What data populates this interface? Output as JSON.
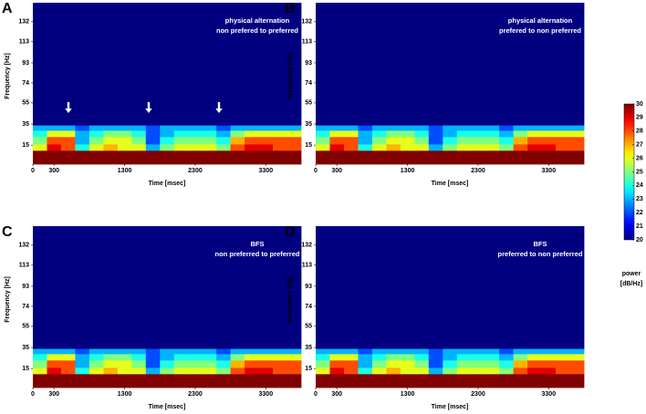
{
  "chart_data": [
    {
      "type": "heatmap",
      "panel": "A",
      "annotation": [
        "physical alternation",
        "non prefered to preferred"
      ],
      "xlabel": "Time [msec]",
      "ylabel": "Frequency [Hz]",
      "xlim": [
        0,
        3800
      ],
      "ylim": [
        -3,
        150
      ],
      "xticks": [
        0,
        300,
        1300,
        2300,
        3300
      ],
      "yticks": [
        15,
        35,
        55,
        74,
        93,
        113,
        132
      ],
      "x_bins": [
        0,
        200,
        400,
        600,
        800,
        1000,
        1200,
        1400,
        1600,
        1800,
        2000,
        2200,
        2400,
        2600,
        2800,
        3000,
        3200,
        3400,
        3600,
        3800
      ],
      "y_bins": [
        -3,
        10,
        16,
        23,
        29,
        34,
        150
      ],
      "z": [
        [
          30,
          30,
          30,
          30,
          30,
          30,
          30,
          30,
          30,
          30,
          30,
          30,
          30,
          30,
          30,
          30,
          30,
          30,
          30
        ],
        [
          26,
          29,
          28,
          24,
          26,
          27,
          26,
          26,
          23,
          25,
          26,
          26,
          26,
          25,
          28,
          29,
          29,
          28,
          28
        ],
        [
          25,
          28,
          28,
          23,
          25,
          26,
          26,
          25,
          22,
          24,
          25,
          25,
          25,
          24,
          27,
          28,
          28,
          28,
          28
        ],
        [
          24,
          26,
          26,
          23,
          24,
          25,
          25,
          24,
          22,
          23,
          24,
          24,
          24,
          23,
          25,
          26,
          26,
          26,
          26
        ],
        [
          23,
          23,
          23,
          22,
          23,
          23,
          23,
          23,
          22,
          23,
          23,
          23,
          23,
          22,
          23,
          23,
          23,
          23,
          23
        ],
        [
          20,
          20,
          20,
          20,
          20,
          20,
          20,
          20,
          20,
          20,
          20,
          20,
          20,
          20,
          20,
          20,
          20,
          20,
          20
        ]
      ]
    },
    {
      "type": "heatmap",
      "panel": "B",
      "annotation": [
        "physical alternation",
        "prefered to non preferred"
      ],
      "xlabel": "Time [msec]",
      "ylabel": "Frequency [Hz]",
      "xlim": [
        0,
        3800
      ],
      "ylim": [
        -3,
        150
      ],
      "xticks": [
        0,
        300,
        1300,
        2300,
        3300
      ],
      "yticks": [
        15,
        35,
        55,
        74,
        93,
        113,
        132
      ],
      "x_bins": [
        0,
        200,
        400,
        600,
        800,
        1000,
        1200,
        1400,
        1600,
        1800,
        2000,
        2200,
        2400,
        2600,
        2800,
        3000,
        3200,
        3400,
        3600,
        3800
      ],
      "y_bins": [
        -3,
        10,
        16,
        23,
        29,
        34,
        150
      ],
      "z": [
        [
          30,
          30,
          30,
          30,
          30,
          30,
          30,
          30,
          30,
          30,
          30,
          30,
          30,
          30,
          30,
          30,
          30,
          30,
          30
        ],
        [
          26,
          29,
          28,
          24,
          26,
          27,
          26,
          26,
          23,
          25,
          26,
          26,
          26,
          25,
          28,
          29,
          29,
          28,
          28
        ],
        [
          25,
          28,
          28,
          23,
          25,
          26,
          26,
          25,
          22,
          24,
          25,
          25,
          25,
          24,
          27,
          28,
          28,
          28,
          28
        ],
        [
          24,
          26,
          26,
          23,
          24,
          25,
          25,
          24,
          22,
          23,
          24,
          24,
          24,
          23,
          25,
          26,
          26,
          26,
          26
        ],
        [
          23,
          23,
          23,
          22,
          23,
          23,
          23,
          23,
          22,
          23,
          23,
          23,
          23,
          22,
          23,
          23,
          23,
          23,
          23
        ],
        [
          20,
          20,
          20,
          20,
          20,
          20,
          20,
          20,
          20,
          20,
          20,
          20,
          20,
          20,
          20,
          20,
          20,
          20,
          20
        ]
      ]
    },
    {
      "type": "heatmap",
      "panel": "C",
      "annotation": [
        "BFS",
        "non preferred to preferred"
      ],
      "xlabel": "Time [msec]",
      "ylabel": "Frequency [Hz]",
      "xlim": [
        0,
        3800
      ],
      "ylim": [
        -3,
        150
      ],
      "xticks": [
        0,
        300,
        1300,
        2300,
        3300
      ],
      "yticks": [
        15,
        35,
        55,
        74,
        93,
        113,
        132
      ],
      "x_bins": [
        0,
        200,
        400,
        600,
        800,
        1000,
        1200,
        1400,
        1600,
        1800,
        2000,
        2200,
        2400,
        2600,
        2800,
        3000,
        3200,
        3400,
        3600,
        3800
      ],
      "y_bins": [
        -3,
        10,
        16,
        23,
        29,
        34,
        150
      ],
      "z": [
        [
          30,
          30,
          30,
          30,
          30,
          30,
          30,
          30,
          30,
          30,
          30,
          30,
          30,
          30,
          30,
          30,
          30,
          30,
          30
        ],
        [
          26,
          29,
          28,
          24,
          26,
          27,
          26,
          26,
          23,
          25,
          26,
          26,
          26,
          25,
          28,
          29,
          29,
          28,
          28
        ],
        [
          25,
          28,
          28,
          23,
          25,
          26,
          26,
          25,
          22,
          24,
          25,
          25,
          25,
          24,
          27,
          28,
          28,
          28,
          28
        ],
        [
          24,
          26,
          26,
          23,
          24,
          25,
          25,
          24,
          22,
          23,
          24,
          24,
          24,
          23,
          25,
          26,
          26,
          26,
          26
        ],
        [
          23,
          23,
          23,
          22,
          23,
          23,
          23,
          23,
          22,
          23,
          23,
          23,
          23,
          22,
          23,
          23,
          23,
          23,
          23
        ],
        [
          20,
          20,
          20,
          20,
          20,
          20,
          20,
          20,
          20,
          20,
          20,
          20,
          20,
          20,
          20,
          20,
          20,
          20,
          20
        ]
      ]
    },
    {
      "type": "heatmap",
      "panel": "D",
      "annotation": [
        "BFS",
        "preferred to non preferred"
      ],
      "xlabel": "Time [msec]",
      "ylabel": "Frequency [Hz]",
      "xlim": [
        0,
        3800
      ],
      "ylim": [
        -3,
        150
      ],
      "xticks": [
        0,
        300,
        1300,
        2300,
        3300
      ],
      "yticks": [
        15,
        35,
        55,
        74,
        93,
        113,
        132
      ],
      "x_bins": [
        0,
        200,
        400,
        600,
        800,
        1000,
        1200,
        1400,
        1600,
        1800,
        2000,
        2200,
        2400,
        2600,
        2800,
        3000,
        3200,
        3400,
        3600,
        3800
      ],
      "y_bins": [
        -3,
        10,
        16,
        23,
        29,
        34,
        150
      ],
      "z": [
        [
          30,
          30,
          30,
          30,
          30,
          30,
          30,
          30,
          30,
          30,
          30,
          30,
          30,
          30,
          30,
          30,
          30,
          30,
          30
        ],
        [
          26,
          29,
          28,
          24,
          26,
          27,
          26,
          26,
          23,
          25,
          26,
          26,
          26,
          25,
          28,
          29,
          29,
          28,
          28
        ],
        [
          25,
          28,
          28,
          23,
          25,
          26,
          26,
          25,
          22,
          24,
          25,
          25,
          25,
          24,
          27,
          28,
          28,
          28,
          28
        ],
        [
          24,
          26,
          26,
          23,
          24,
          25,
          25,
          24,
          22,
          23,
          24,
          24,
          24,
          23,
          25,
          26,
          26,
          26,
          26
        ],
        [
          23,
          23,
          23,
          22,
          23,
          23,
          23,
          23,
          22,
          23,
          23,
          23,
          23,
          22,
          23,
          23,
          23,
          23,
          23
        ],
        [
          20,
          20,
          20,
          20,
          20,
          20,
          20,
          20,
          20,
          20,
          20,
          20,
          20,
          20,
          20,
          20,
          20,
          20,
          20
        ]
      ]
    },
    {
      "type": "colorbar",
      "label": [
        "power",
        "[dB/Hz]"
      ],
      "clim": [
        20,
        30
      ],
      "ticks": [
        20,
        21,
        22,
        23,
        24,
        25,
        26,
        27,
        28,
        29,
        30
      ]
    }
  ]
}
